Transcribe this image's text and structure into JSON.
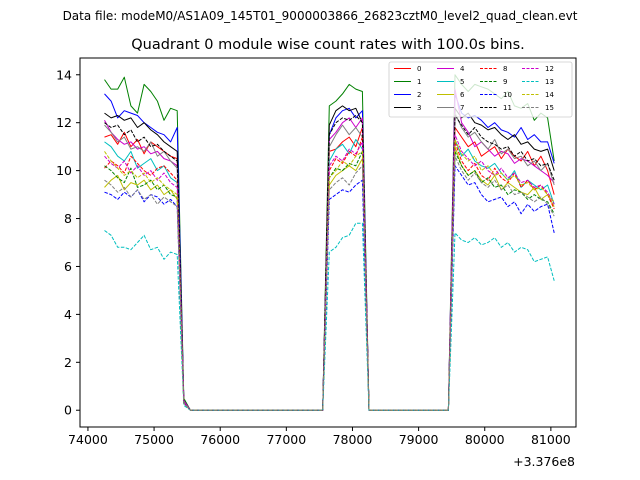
{
  "suptitle": "Data file: modeM0/AS1A09_145T01_9000003866_26823cztM0_level2_quad_clean.evt",
  "chart_data": {
    "type": "line",
    "title": "Quadrant 0 module wise count rates with 100.0s bins.",
    "xlabel": "",
    "ylabel": "",
    "x_offset_label": "+3.376e8",
    "xlim": [
      73880,
      81380
    ],
    "ylim": [
      -0.7,
      14.7
    ],
    "xticks": [
      74000,
      75000,
      76000,
      77000,
      78000,
      79000,
      80000,
      81000
    ],
    "xtick_labels": [
      "74000",
      "75000",
      "76000",
      "77000",
      "78000",
      "79000",
      "80000",
      "81000"
    ],
    "yticks": [
      0,
      2,
      4,
      6,
      8,
      10,
      12,
      14
    ],
    "ytick_labels": [
      "0",
      "2",
      "4",
      "6",
      "8",
      "10",
      "12",
      "14"
    ],
    "legend_position": "top-right",
    "x": [
      74250,
      74350,
      74450,
      74550,
      74650,
      74750,
      74850,
      74950,
      75050,
      75150,
      75250,
      75350,
      75450,
      75550,
      76450,
      77550,
      77650,
      77750,
      77850,
      77950,
      78050,
      78150,
      78250,
      78350,
      79250,
      79450,
      79550,
      79650,
      79750,
      79850,
      79950,
      80050,
      80150,
      80250,
      80350,
      80450,
      80550,
      80650,
      80750,
      80850,
      80950,
      81050
    ],
    "series": [
      {
        "name": "0",
        "color": "#ff0000",
        "dash": "solid",
        "values": [
          11.4,
          11.5,
          11.1,
          11.6,
          11.0,
          11.3,
          10.7,
          11.2,
          11.0,
          10.8,
          10.6,
          10.5,
          0.4,
          0.0,
          0.0,
          0.0,
          10.8,
          10.9,
          11.2,
          11.4,
          11.0,
          11.8,
          0.0,
          0.0,
          0.0,
          0.0,
          11.8,
          11.4,
          11.0,
          11.2,
          10.6,
          10.8,
          11.0,
          10.5,
          10.9,
          10.6,
          10.4,
          10.8,
          10.2,
          10.6,
          10.0,
          9.0
        ]
      },
      {
        "name": "1",
        "color": "#008000",
        "dash": "solid",
        "values": [
          13.8,
          13.4,
          13.4,
          13.9,
          12.7,
          12.4,
          13.6,
          13.3,
          12.9,
          12.1,
          12.6,
          12.5,
          0.5,
          0.0,
          0.0,
          0.0,
          12.7,
          12.9,
          13.2,
          13.6,
          13.4,
          13.3,
          0.0,
          0.0,
          0.0,
          0.0,
          14.0,
          13.6,
          13.3,
          13.6,
          13.5,
          13.4,
          13.2,
          13.0,
          13.3,
          12.7,
          12.6,
          12.8,
          12.1,
          12.4,
          12.2,
          10.4
        ]
      },
      {
        "name": "2",
        "color": "#0000ff",
        "dash": "solid",
        "values": [
          13.2,
          12.9,
          12.2,
          12.5,
          12.4,
          12.3,
          12.0,
          11.8,
          11.6,
          11.5,
          11.2,
          11.8,
          0.4,
          0.0,
          0.0,
          0.0,
          11.5,
          12.2,
          12.5,
          12.6,
          12.2,
          12.5,
          0.0,
          0.0,
          0.0,
          0.0,
          13.2,
          12.4,
          12.2,
          12.3,
          12.1,
          11.8,
          12.0,
          11.7,
          11.6,
          11.4,
          11.8,
          11.3,
          11.5,
          11.2,
          11.2,
          10.3
        ]
      },
      {
        "name": "3",
        "color": "#000000",
        "dash": "solid",
        "values": [
          12.4,
          12.2,
          12.3,
          12.1,
          12.2,
          11.8,
          12.0,
          11.7,
          11.5,
          11.2,
          11.0,
          10.8,
          0.4,
          0.0,
          0.0,
          0.0,
          11.9,
          12.5,
          12.7,
          12.5,
          12.6,
          12.0,
          0.0,
          0.0,
          0.0,
          0.0,
          12.6,
          12.2,
          12.4,
          12.0,
          11.9,
          11.7,
          11.8,
          11.5,
          11.3,
          11.5,
          11.1,
          11.2,
          10.9,
          10.8,
          10.9,
          10.0
        ]
      },
      {
        "name": "4",
        "color": "#cc00cc",
        "dash": "solid",
        "values": [
          12.1,
          11.6,
          11.3,
          11.1,
          11.2,
          10.9,
          11.0,
          10.7,
          10.8,
          10.5,
          10.4,
          10.2,
          0.4,
          0.0,
          0.0,
          0.0,
          11.3,
          11.6,
          12.0,
          12.2,
          11.8,
          12.2,
          0.0,
          0.0,
          0.0,
          0.0,
          13.4,
          12.0,
          11.6,
          11.0,
          11.2,
          10.9,
          10.6,
          10.8,
          10.7,
          10.3,
          10.5,
          10.4,
          10.2,
          10.0,
          9.8,
          9.5
        ]
      },
      {
        "name": "5",
        "color": "#00bfbf",
        "dash": "solid",
        "values": [
          11.2,
          11.0,
          10.6,
          10.4,
          10.8,
          10.1,
          10.3,
          10.5,
          10.0,
          10.2,
          9.7,
          9.5,
          0.3,
          0.0,
          0.0,
          0.0,
          10.4,
          10.9,
          11.1,
          10.7,
          11.3,
          10.9,
          0.0,
          0.0,
          0.0,
          0.0,
          11.3,
          10.6,
          10.9,
          10.4,
          10.2,
          10.1,
          10.3,
          9.9,
          9.6,
          10.0,
          9.3,
          9.6,
          9.4,
          9.2,
          9.4,
          8.6
        ]
      },
      {
        "name": "6",
        "color": "#bfbf00",
        "dash": "solid",
        "values": [
          9.3,
          9.6,
          9.8,
          9.2,
          9.5,
          9.4,
          9.6,
          9.2,
          9.4,
          9.0,
          9.2,
          8.8,
          0.3,
          0.0,
          0.0,
          0.0,
          9.4,
          9.8,
          10.0,
          10.2,
          10.0,
          10.5,
          0.0,
          0.0,
          0.0,
          0.0,
          11.0,
          10.2,
          9.8,
          10.0,
          9.6,
          9.4,
          9.8,
          9.2,
          9.5,
          9.3,
          9.1,
          9.0,
          9.3,
          8.8,
          9.0,
          8.5
        ]
      },
      {
        "name": "7",
        "color": "#808080",
        "dash": "solid",
        "values": [
          11.9,
          11.6,
          11.2,
          11.4,
          10.9,
          11.0,
          10.8,
          11.2,
          10.6,
          10.8,
          10.4,
          10.1,
          0.3,
          0.0,
          0.0,
          0.0,
          11.0,
          11.5,
          11.9,
          11.5,
          11.8,
          11.4,
          0.0,
          0.0,
          0.0,
          0.0,
          12.4,
          11.8,
          11.4,
          11.6,
          11.2,
          10.9,
          11.3,
          10.7,
          10.9,
          10.5,
          10.6,
          10.2,
          10.4,
          10.0,
          10.3,
          9.4
        ]
      },
      {
        "name": "8",
        "color": "#ff0000",
        "dash": "dashed",
        "values": [
          10.1,
          10.4,
          10.2,
          9.9,
          10.6,
          10.3,
          10.0,
          9.8,
          10.1,
          10.2,
          9.9,
          9.6,
          0.3,
          0.0,
          0.0,
          0.0,
          10.0,
          10.5,
          10.3,
          10.8,
          10.6,
          11.4,
          0.0,
          0.0,
          0.0,
          0.0,
          11.2,
          10.4,
          10.0,
          10.3,
          9.8,
          9.6,
          10.1,
          9.7,
          9.5,
          9.9,
          9.3,
          9.6,
          9.2,
          9.4,
          9.0,
          8.4
        ]
      },
      {
        "name": "9",
        "color": "#008000",
        "dash": "dashed",
        "values": [
          10.2,
          10.0,
          9.7,
          9.5,
          10.1,
          9.3,
          9.4,
          9.6,
          9.2,
          9.4,
          9.0,
          8.9,
          0.3,
          0.0,
          0.0,
          0.0,
          9.7,
          10.1,
          10.0,
          10.3,
          10.2,
          10.8,
          0.0,
          0.0,
          0.0,
          0.0,
          10.8,
          10.2,
          9.8,
          10.0,
          9.5,
          9.7,
          9.3,
          9.4,
          9.0,
          9.2,
          9.1,
          8.8,
          9.0,
          8.8,
          8.7,
          8.2
        ]
      },
      {
        "name": "10",
        "color": "#0000ff",
        "dash": "dashed",
        "values": [
          9.1,
          9.0,
          8.8,
          9.1,
          8.9,
          9.2,
          8.7,
          9.0,
          8.9,
          8.6,
          8.8,
          8.5,
          0.3,
          0.0,
          0.0,
          0.0,
          8.8,
          9.0,
          9.2,
          9.1,
          9.4,
          9.6,
          0.0,
          0.0,
          0.0,
          0.0,
          10.2,
          9.8,
          9.4,
          9.5,
          9.0,
          8.7,
          8.8,
          8.9,
          8.5,
          8.7,
          8.2,
          8.6,
          8.3,
          8.5,
          8.6,
          7.4
        ]
      },
      {
        "name": "11",
        "color": "#000000",
        "dash": "dashed",
        "values": [
          12.0,
          11.8,
          11.9,
          11.5,
          11.7,
          11.2,
          11.4,
          11.0,
          11.1,
          10.8,
          10.6,
          10.4,
          0.3,
          0.0,
          0.0,
          0.0,
          11.5,
          12.0,
          12.2,
          12.1,
          12.3,
          12.0,
          0.0,
          0.0,
          0.0,
          0.0,
          12.3,
          11.9,
          11.5,
          11.8,
          11.4,
          11.2,
          11.1,
          10.9,
          11.0,
          10.6,
          10.8,
          10.4,
          10.5,
          10.2,
          10.3,
          9.6
        ]
      },
      {
        "name": "12",
        "color": "#cc00cc",
        "dash": "dashed",
        "values": [
          10.6,
          10.3,
          10.1,
          10.4,
          9.9,
          10.2,
          9.8,
          10.0,
          9.6,
          9.9,
          9.5,
          9.3,
          0.3,
          0.0,
          0.0,
          0.0,
          10.2,
          10.6,
          10.4,
          10.9,
          10.7,
          11.2,
          0.0,
          0.0,
          0.0,
          0.0,
          11.5,
          10.8,
          10.5,
          10.2,
          10.4,
          10.0,
          9.8,
          10.1,
          9.7,
          9.9,
          9.5,
          9.6,
          9.3,
          9.4,
          9.1,
          8.6
        ]
      },
      {
        "name": "13",
        "color": "#00bfbf",
        "dash": "dashed",
        "values": [
          7.5,
          7.3,
          6.8,
          6.8,
          6.7,
          7.0,
          7.3,
          6.7,
          6.8,
          6.3,
          6.6,
          6.5,
          0.2,
          0.0,
          0.0,
          0.0,
          6.6,
          6.8,
          7.2,
          7.3,
          7.8,
          7.8,
          0.0,
          0.0,
          0.0,
          0.0,
          7.4,
          7.1,
          7.0,
          7.2,
          6.9,
          7.0,
          7.2,
          6.8,
          7.0,
          6.6,
          6.8,
          6.7,
          6.2,
          6.3,
          6.4,
          5.4
        ]
      },
      {
        "name": "14",
        "color": "#bfbf00",
        "dash": "dashed",
        "values": [
          10.8,
          10.4,
          10.1,
          9.8,
          10.0,
          9.7,
          9.9,
          9.5,
          9.7,
          9.4,
          9.2,
          9.0,
          0.3,
          0.0,
          0.0,
          0.0,
          9.7,
          10.0,
          10.4,
          10.2,
          10.6,
          10.8,
          0.0,
          0.0,
          0.0,
          0.0,
          11.3,
          10.7,
          10.4,
          10.6,
          10.0,
          10.2,
          9.8,
          9.9,
          9.6,
          9.8,
          9.4,
          9.5,
          9.2,
          9.3,
          9.0,
          8.7
        ]
      },
      {
        "name": "15",
        "color": "#808080",
        "dash": "dashed",
        "values": [
          9.6,
          9.4,
          9.1,
          9.3,
          8.9,
          9.2,
          8.8,
          9.0,
          8.6,
          8.9,
          8.7,
          8.5,
          0.3,
          0.0,
          0.0,
          0.0,
          9.2,
          9.5,
          9.7,
          9.4,
          9.9,
          10.2,
          0.0,
          0.0,
          0.0,
          0.0,
          10.6,
          10.0,
          9.6,
          9.9,
          9.5,
          9.3,
          9.6,
          9.2,
          9.4,
          9.0,
          9.1,
          8.9,
          8.7,
          8.9,
          8.6,
          8.1
        ]
      }
    ]
  }
}
